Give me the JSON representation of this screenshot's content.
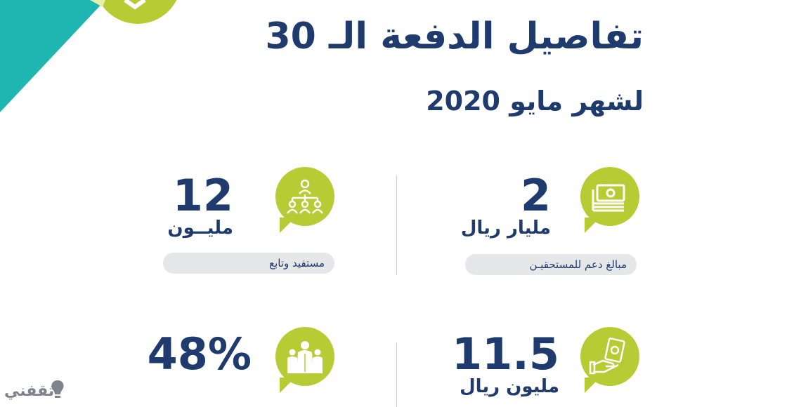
{
  "header": {
    "title": "تفاصيل الدفعة الـ 30",
    "subtitle": "لشهر مايو 2020"
  },
  "stats": {
    "support_amount": {
      "value": "2",
      "unit": "مليار ريال",
      "label": "مبالغ دعم للمستحقيـن",
      "icon": "money-stack-icon"
    },
    "beneficiaries": {
      "value": "12",
      "unit": "مليــون",
      "label": "مستفيد وتابع",
      "icon": "people-hierarchy-icon"
    },
    "cash_amount": {
      "value": "11.5",
      "unit": "مليون ريال",
      "icon": "hand-money-icon"
    },
    "percentage": {
      "value": "48%",
      "icon": "family-icon"
    }
  },
  "watermark": {
    "text": "ثقفني"
  },
  "colors": {
    "navy": "#1f3b6e",
    "green": "#b5cc34",
    "teal": "#1fb5b0",
    "pill": "#e6e7e9"
  }
}
